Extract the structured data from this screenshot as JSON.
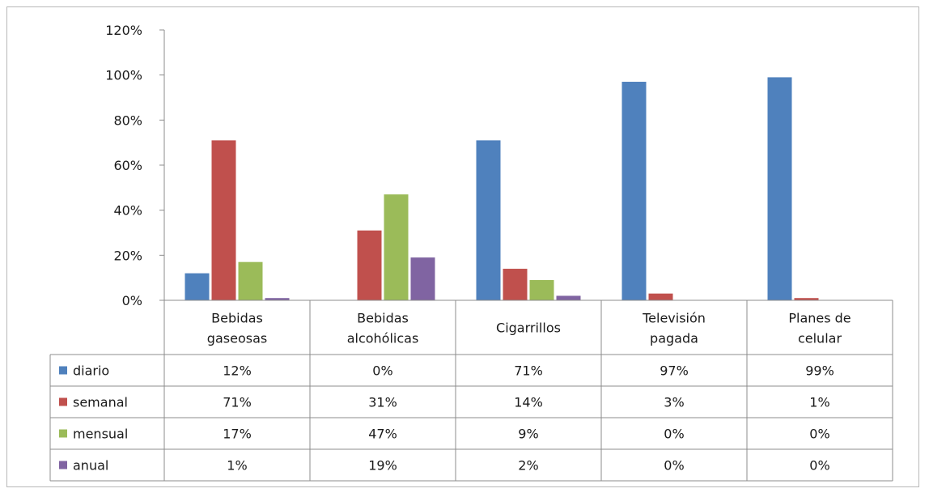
{
  "chart_data": {
    "type": "bar",
    "categories": [
      [
        "Bebidas",
        "gaseosas"
      ],
      [
        "Bebidas",
        "alcohólicas"
      ],
      [
        "Cigarrillos"
      ],
      [
        "Televisión",
        "pagada"
      ],
      [
        "Planes de",
        "celular"
      ]
    ],
    "series": [
      {
        "name": "diario",
        "color": "#4f81bd",
        "values": [
          12,
          0,
          71,
          97,
          99
        ],
        "labels": [
          "12%",
          "0%",
          "71%",
          "97%",
          "99%"
        ]
      },
      {
        "name": "semanal",
        "color": "#c0504d",
        "values": [
          71,
          31,
          14,
          3,
          1
        ],
        "labels": [
          "71%",
          "31%",
          "14%",
          "3%",
          "1%"
        ]
      },
      {
        "name": "mensual",
        "color": "#9bbb59",
        "values": [
          17,
          47,
          9,
          0,
          0
        ],
        "labels": [
          "17%",
          "47%",
          "9%",
          "0%",
          "0%"
        ]
      },
      {
        "name": "anual",
        "color": "#8064a2",
        "values": [
          1,
          19,
          2,
          0,
          0
        ],
        "labels": [
          "1%",
          "19%",
          "2%",
          "0%",
          "0%"
        ]
      }
    ],
    "y_ticks": [
      "0%",
      "20%",
      "40%",
      "60%",
      "80%",
      "100%",
      "120%"
    ],
    "ylim": [
      0,
      120
    ],
    "grid": false,
    "legend": "data-table"
  }
}
